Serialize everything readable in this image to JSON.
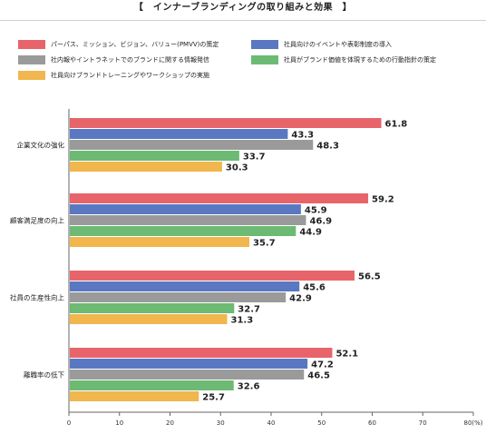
{
  "title": "【　インナーブランディングの取り組みと効果　】",
  "legend": [
    {
      "label": "パーパス、ミッション、ビジョン、バリュー(PMVV)の策定",
      "color": "#e8646b"
    },
    {
      "label": "社員向けのイベントや表彰制度の導入",
      "color": "#5a78c2"
    },
    {
      "label": "社内報やイントラネットでのブランドに関する情報発信",
      "color": "#9a9a9a"
    },
    {
      "label": "社員がブランド価値を体現するための行動指針の策定",
      "color": "#6cba73"
    },
    {
      "label": "社員向けブランドトレーニングやワークショップの実施",
      "color": "#f1b64e"
    }
  ],
  "chart_data": {
    "type": "bar",
    "orientation": "horizontal",
    "title": "【　インナーブランディングの取り組みと効果　】",
    "xlabel": "",
    "ylabel": "",
    "xlim": [
      0,
      80
    ],
    "x_ticks": [
      "0",
      "10",
      "20",
      "30",
      "40",
      "50",
      "60",
      "70",
      "80(%)"
    ],
    "grid": false,
    "legend_position": "top",
    "categories": [
      "企業文化の強化",
      "顧客満足度の向上",
      "社員の生産性向上",
      "離職率の低下"
    ],
    "series": [
      {
        "name": "パーパス、ミッション、ビジョン、バリュー(PMVV)の策定",
        "color": "#e8646b",
        "values": [
          61.8,
          59.2,
          56.5,
          52.1
        ]
      },
      {
        "name": "社員向けのイベントや表彰制度の導入",
        "color": "#5a78c2",
        "values": [
          43.3,
          45.9,
          45.6,
          47.2
        ]
      },
      {
        "name": "社内報やイントラネットでのブランドに関する情報発信",
        "color": "#9a9a9a",
        "values": [
          48.3,
          46.9,
          42.9,
          46.5
        ]
      },
      {
        "name": "社員がブランド価値を体現するための行動指針の策定",
        "color": "#6cba73",
        "values": [
          33.7,
          44.9,
          32.7,
          32.6
        ]
      },
      {
        "name": "社員向けブランドトレーニングやワークショップの実施",
        "color": "#f1b64e",
        "values": [
          30.3,
          35.7,
          31.3,
          25.7
        ]
      }
    ]
  }
}
